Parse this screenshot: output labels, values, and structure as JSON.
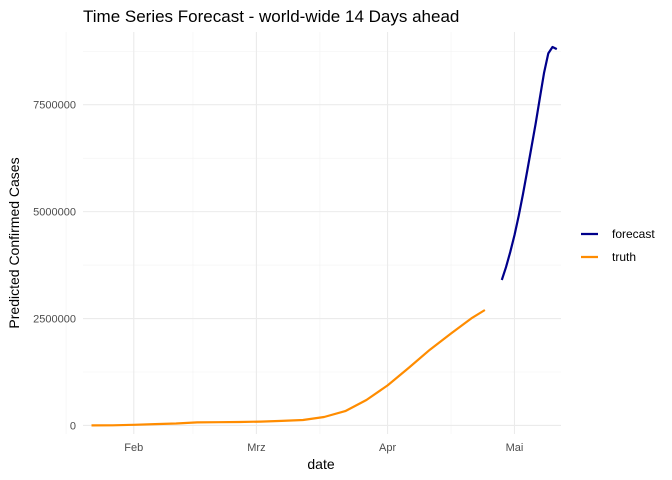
{
  "chart_data": {
    "type": "line",
    "title": "Time Series Forecast - world-wide 14 Days ahead",
    "xlabel": "date",
    "ylabel": "Predicted Confirmed Cases",
    "x_axis": {
      "type": "date",
      "range": [
        "2020-01-20",
        "2020-05-12"
      ],
      "major_ticks": [
        {
          "date": "2020-02-01",
          "label": "Feb"
        },
        {
          "date": "2020-03-01",
          "label": "Mrz"
        },
        {
          "date": "2020-04-01",
          "label": "Apr"
        },
        {
          "date": "2020-05-01",
          "label": "Mai"
        }
      ],
      "minor_ticks": [
        "2020-01-16",
        "2020-02-15",
        "2020-03-16",
        "2020-04-16"
      ]
    },
    "y_axis": {
      "range": [
        -200000,
        9200000
      ],
      "major_ticks": [
        0,
        2500000,
        5000000,
        7500000
      ],
      "tick_labels": [
        "0",
        "2500000",
        "5000000",
        "7500000"
      ],
      "minor_ticks": [
        1250000,
        3750000,
        6250000,
        8750000
      ]
    },
    "grid": true,
    "legend_position": "right",
    "series": [
      {
        "name": "truth",
        "color": "#ff8c00",
        "x": [
          "2020-01-22",
          "2020-01-27",
          "2020-02-01",
          "2020-02-06",
          "2020-02-11",
          "2020-02-16",
          "2020-02-21",
          "2020-02-26",
          "2020-03-02",
          "2020-03-07",
          "2020-03-12",
          "2020-03-17",
          "2020-03-22",
          "2020-03-27",
          "2020-04-01",
          "2020-04-06",
          "2020-04-11",
          "2020-04-16",
          "2020-04-21",
          "2020-04-24"
        ],
        "values": [
          555,
          2900,
          14500,
          30800,
          45200,
          71200,
          77000,
          81200,
          90300,
          105800,
          128300,
          197100,
          336000,
          595000,
          936000,
          1345000,
          1772000,
          2151000,
          2517000,
          2700000
        ]
      },
      {
        "name": "forecast",
        "color": "#00008b",
        "x": [
          "2020-04-28",
          "2020-04-29",
          "2020-04-30",
          "2020-05-01",
          "2020-05-02",
          "2020-05-03",
          "2020-05-04",
          "2020-05-05",
          "2020-05-06",
          "2020-05-07",
          "2020-05-08",
          "2020-05-09",
          "2020-05-10",
          "2020-05-11"
        ],
        "values": [
          3400000,
          3700000,
          4050000,
          4450000,
          4900000,
          5400000,
          5950000,
          6500000,
          7050000,
          7650000,
          8250000,
          8700000,
          8850000,
          8800000
        ]
      }
    ],
    "legend": [
      {
        "name": "forecast",
        "color": "#00008b"
      },
      {
        "name": "truth",
        "color": "#ff8c00"
      }
    ]
  }
}
